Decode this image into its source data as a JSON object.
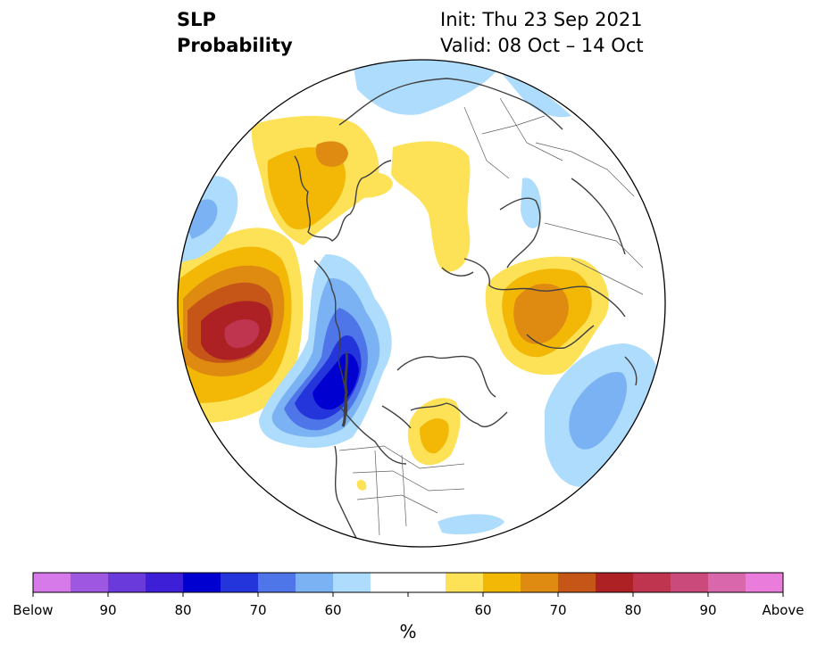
{
  "title": {
    "left_line1": "SLP",
    "left_line2": "Probability",
    "right_line1": "Init: Thu 23 Sep 2021",
    "right_line2": "Valid: 08 Oct – 14 Oct"
  },
  "colorbar": {
    "unit": "%",
    "labels": [
      "Below",
      "90",
      "80",
      "70",
      "60",
      "60",
      "70",
      "80",
      "90",
      "Above"
    ],
    "colors": [
      "#d57ae8",
      "#9e57e1",
      "#6a3adb",
      "#3d1fd8",
      "#0000d0",
      "#2335db",
      "#4f76e8",
      "#7bb2f3",
      "#aedcfc",
      "#ffffff",
      "#ffffff",
      "#fde257",
      "#f3b806",
      "#df8b12",
      "#c65518",
      "#ad2124",
      "#bf3550",
      "#cb4a7c",
      "#d967ab",
      "#ea7ddc"
    ]
  },
  "map": {
    "projection": "north-polar-stereographic",
    "colors": {
      "light_blue": "#aedcfc",
      "mid_blue": "#7bb2f3",
      "blue": "#4f76e8",
      "deep_blue": "#2335db",
      "darkest_blue": "#0000d0",
      "yellow": "#fde257",
      "gold": "#f3b806",
      "orange": "#df8b12",
      "red_orange": "#c65518",
      "red": "#ad2124",
      "rose": "#bf3550"
    }
  }
}
